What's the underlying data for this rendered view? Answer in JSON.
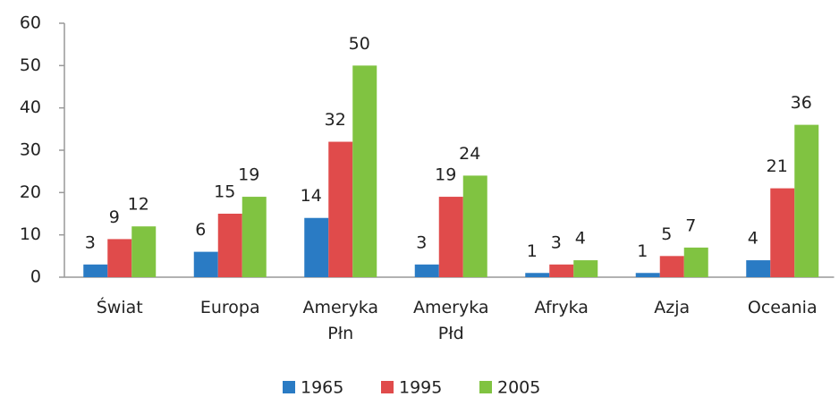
{
  "chart_data": {
    "type": "bar",
    "categories": [
      "Świat",
      "Europa",
      "Ameryka Płn",
      "Ameryka Płd",
      "Afryka",
      "Azja",
      "Oceania"
    ],
    "series": [
      {
        "name": "1965",
        "color": "#2a7bc4",
        "values": [
          3,
          6,
          14,
          3,
          1,
          1,
          4
        ]
      },
      {
        "name": "1995",
        "color": "#e04b4b",
        "values": [
          9,
          15,
          32,
          19,
          3,
          5,
          21
        ]
      },
      {
        "name": "2005",
        "color": "#80c341",
        "values": [
          12,
          19,
          50,
          24,
          4,
          7,
          36
        ]
      }
    ],
    "ylim": [
      0,
      60
    ],
    "yticks": [
      0,
      10,
      20,
      30,
      40,
      50,
      60
    ],
    "grid": false,
    "legend": "bottom"
  }
}
